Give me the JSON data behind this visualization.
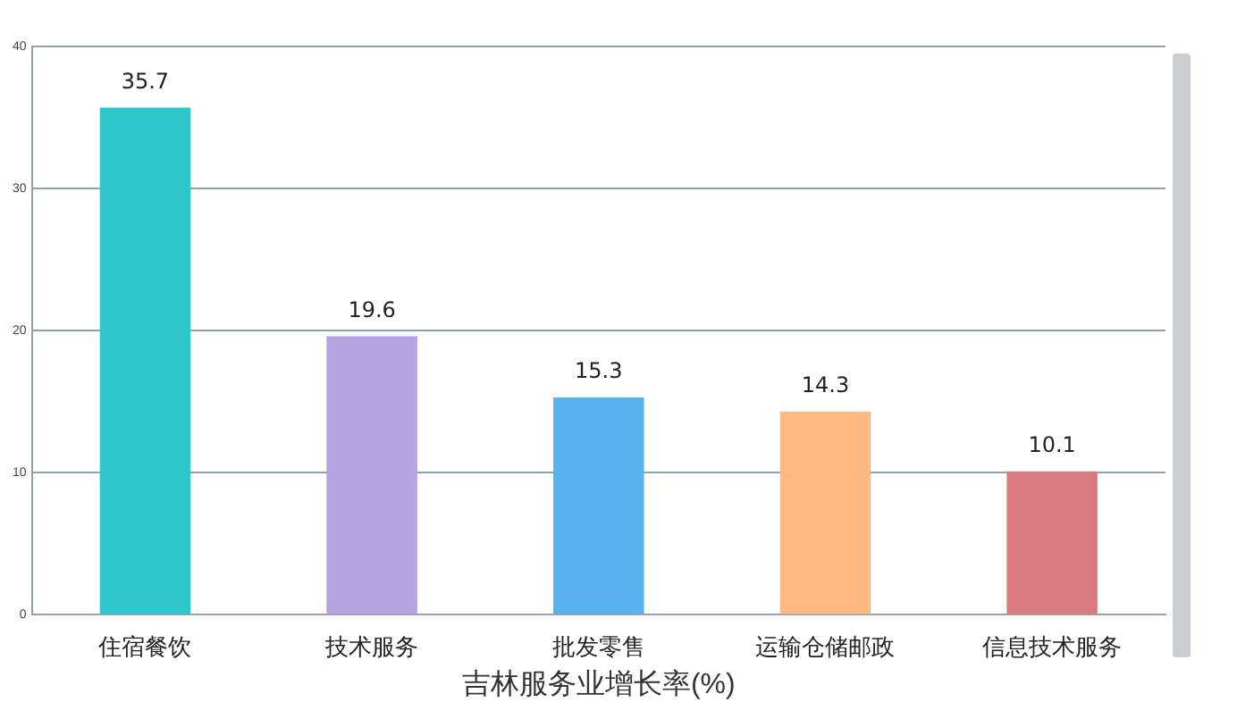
{
  "chart_data": {
    "type": "bar",
    "xlabel": "吉林服务业增长率(%)",
    "categories": [
      "住宿餐饮",
      "技术服务",
      "批发零售",
      "运输仓储邮政",
      "信息技术服务"
    ],
    "values": [
      35.7,
      19.6,
      15.3,
      14.3,
      10.1
    ],
    "colors": [
      "#2ec7c9",
      "#b6a2de",
      "#5ab1ef",
      "#ffb980",
      "#d87a80"
    ],
    "ylim": [
      0,
      40
    ],
    "yticks": [
      0,
      10,
      20,
      30,
      40
    ],
    "grid": "y",
    "data_labels": true
  }
}
